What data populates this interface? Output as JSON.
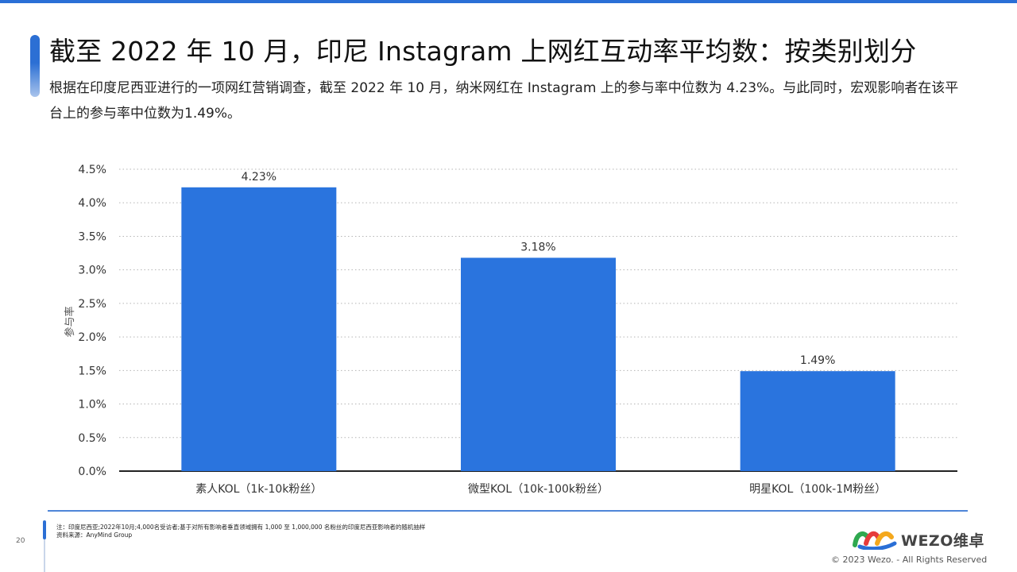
{
  "slide": {
    "title": "截至 2022 年 10 月，印尼 Instagram 上网红互动率平均数：按类别划分",
    "subtitle": "根据在印度尼西亚进行的一项网红营销调查，截至 2022 年 10 月，纳米网红在 Instagram 上的参与率中位数为 4.23%。与此同时，宏观影响者在该平台上的参与率中位数为1.49%。",
    "page_number": "20"
  },
  "chart_data": {
    "type": "bar",
    "categories": [
      "素人KOL（1k-10k粉丝）",
      "微型KOL（10k-100k粉丝）",
      "明星KOL（100k-1M粉丝）"
    ],
    "values": [
      4.23,
      3.18,
      1.49
    ],
    "data_labels": [
      "4.23%",
      "3.18%",
      "1.49%"
    ],
    "ylabel": "参与率",
    "ylim": [
      0,
      4.5
    ],
    "yticks": [
      0,
      0.5,
      1.0,
      1.5,
      2.0,
      2.5,
      3.0,
      3.5,
      4.0,
      4.5
    ],
    "ytick_labels": [
      "0.0%",
      "0.5%",
      "1.0%",
      "1.5%",
      "2.0%",
      "2.5%",
      "3.0%",
      "3.5%",
      "4.0%",
      "4.5%"
    ],
    "grid": "dotted horizontal",
    "bar_color": "#2a74de"
  },
  "footer": {
    "note": "注：印度尼西亚;2022年10月;4,000名受访者;基于对所有影响者垂直领域拥有 1,000 至 1,000,000 名粉丝的印度尼西亚影响者的随机抽样",
    "source": "资料来源：AnyMind Group",
    "logo_text": "WEZO维卓",
    "copyright": "© 2023 Wezo. - All Rights Reserved"
  },
  "colors": {
    "accent": "#2a6fd6",
    "bar": "#2a74de"
  }
}
